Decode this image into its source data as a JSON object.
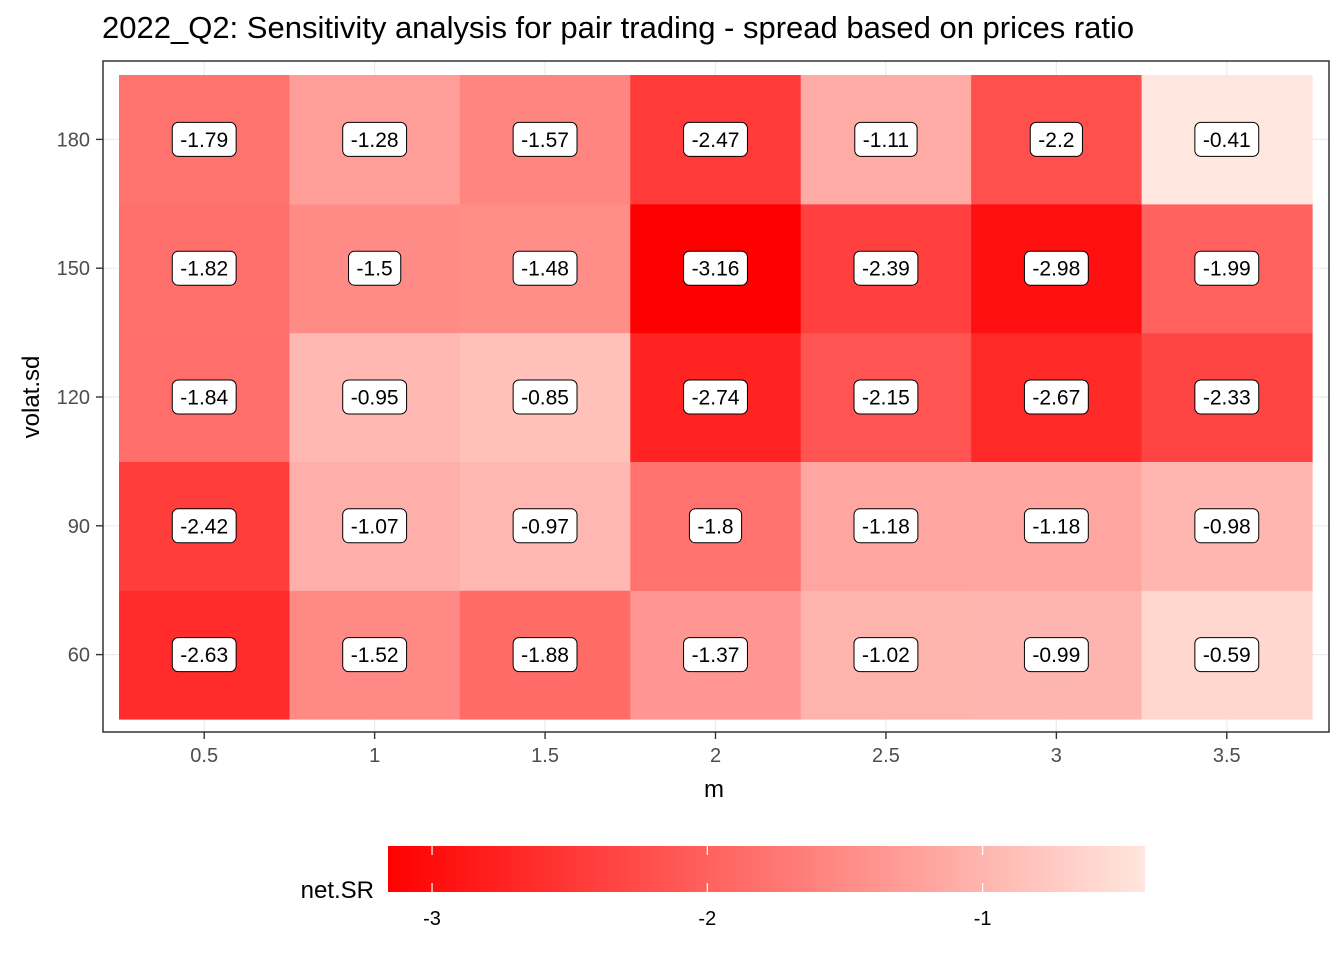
{
  "chart_data": {
    "type": "heatmap",
    "title": "2022_Q2: Sensitivity analysis for pair trading - spread based on prices ratio",
    "xlabel": "m",
    "ylabel": "volat.sd",
    "x": [
      "0.5",
      "1",
      "1.5",
      "2",
      "2.5",
      "3",
      "3.5"
    ],
    "y": [
      "60",
      "90",
      "120",
      "150",
      "180"
    ],
    "values": [
      [
        -2.63,
        -1.52,
        -1.88,
        -1.37,
        -1.02,
        -0.99,
        -0.59
      ],
      [
        -2.42,
        -1.07,
        -0.97,
        -1.8,
        -1.18,
        -1.18,
        -0.98
      ],
      [
        -1.84,
        -0.95,
        -0.85,
        -2.74,
        -2.15,
        -2.67,
        -2.33
      ],
      [
        -1.82,
        -1.5,
        -1.48,
        -3.16,
        -2.39,
        -2.98,
        -1.99
      ],
      [
        -1.79,
        -1.28,
        -1.57,
        -2.47,
        -1.11,
        -2.2,
        -0.41
      ]
    ],
    "legend": {
      "title": "net.SR",
      "position": "bottom",
      "ticks": [
        "-3",
        "-2",
        "-1"
      ],
      "range": [
        -3.16,
        -0.41
      ]
    },
    "colors": {
      "low": "#ff0000",
      "high": "#ffe6de"
    },
    "grid": true
  }
}
